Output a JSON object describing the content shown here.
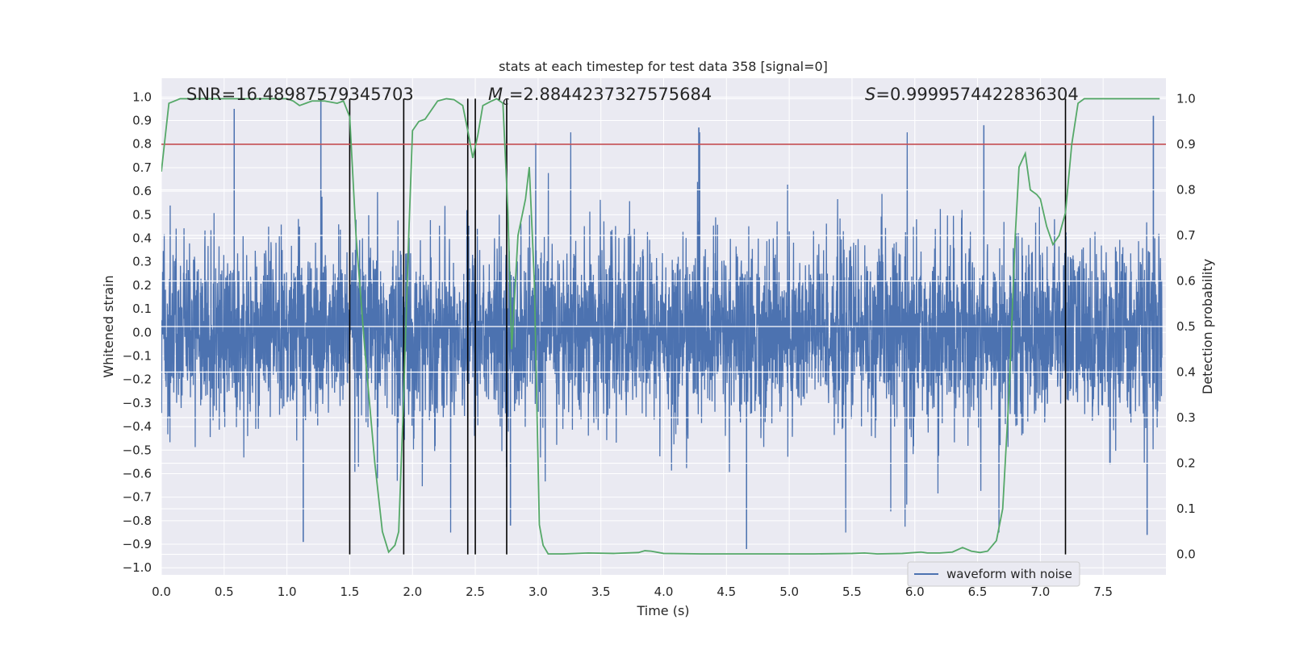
{
  "chart_data": {
    "type": "line",
    "title": "stats at each timestep for test data 358 [signal=0]",
    "xlabel": "Time (s)",
    "ylabel_left": "Whitened strain",
    "ylabel_right": "Detection probability",
    "xlim": [
      0.0,
      8.0
    ],
    "ylim_left": [
      -1.03,
      1.08
    ],
    "ylim_right": [
      -0.045,
      1.045
    ],
    "x_ticks": [
      0.0,
      0.5,
      1.0,
      1.5,
      2.0,
      2.5,
      3.0,
      3.5,
      4.0,
      4.5,
      5.0,
      5.5,
      6.0,
      6.5,
      7.0,
      7.5
    ],
    "x_tick_labels": [
      "0.0",
      "0.5",
      "1.0",
      "1.5",
      "2.0",
      "2.5",
      "3.0",
      "3.5",
      "4.0",
      "4.5",
      "5.0",
      "5.5",
      "6.0",
      "6.5",
      "7.0",
      "7.5"
    ],
    "y_left_ticks": [
      -1.0,
      -0.9,
      -0.8,
      -0.7,
      -0.6,
      -0.5,
      -0.4,
      -0.3,
      -0.2,
      -0.1,
      0.0,
      0.1,
      0.2,
      0.3,
      0.4,
      0.5,
      0.6,
      0.7,
      0.8,
      0.9,
      1.0
    ],
    "y_left_tick_labels": [
      "−1.0",
      "−0.9",
      "−0.8",
      "−0.7",
      "−0.6",
      "−0.5",
      "−0.4",
      "−0.3",
      "−0.2",
      "−0.1",
      "0.0",
      "0.1",
      "0.2",
      "0.3",
      "0.4",
      "0.5",
      "0.6",
      "0.7",
      "0.8",
      "0.9",
      "1.0"
    ],
    "y_right_ticks": [
      0.0,
      0.1,
      0.2,
      0.3,
      0.4,
      0.5,
      0.6,
      0.7,
      0.8,
      0.9,
      1.0
    ],
    "y_right_tick_labels": [
      "0.0",
      "0.1",
      "0.2",
      "0.3",
      "0.4",
      "0.5",
      "0.6",
      "0.7",
      "0.8",
      "0.9",
      "1.0"
    ],
    "annotations": {
      "snr": "SNR=16.48987579345703",
      "mc_symbol": "M",
      "mc_subscript": "c",
      "mc_value": "=2.8844237327575684",
      "s_symbol": "S",
      "s_value": "=0.9999574422836304"
    },
    "waveform_series": {
      "name": "waveform with noise",
      "color": "#4c72b0",
      "note": "dense noisy strain series; typical envelope ±0.55 with sparse spikes to ±0.95",
      "peak_spikes": [
        {
          "x": 0.58,
          "y": 0.95
        },
        {
          "x": 1.27,
          "y": 0.99
        },
        {
          "x": 1.13,
          "y": -0.89
        },
        {
          "x": 1.72,
          "y": -0.62
        },
        {
          "x": 2.78,
          "y": -0.82
        },
        {
          "x": 4.28,
          "y": 0.87
        },
        {
          "x": 4.66,
          "y": -0.92
        },
        {
          "x": 6.55,
          "y": 0.88
        },
        {
          "x": 7.9,
          "y": 0.92
        },
        {
          "x": 7.85,
          "y": -0.86
        }
      ]
    },
    "probability_series": {
      "name": "Detection probability",
      "color": "#55a868",
      "x": [
        0.0,
        0.06,
        0.15,
        0.3,
        0.5,
        0.7,
        0.9,
        1.0,
        1.05,
        1.1,
        1.2,
        1.3,
        1.4,
        1.45,
        1.5,
        1.55,
        1.62,
        1.7,
        1.76,
        1.81,
        1.86,
        1.89,
        1.93,
        1.97,
        2.0,
        2.05,
        2.1,
        2.2,
        2.27,
        2.33,
        2.4,
        2.44,
        2.48,
        2.52,
        2.56,
        2.63,
        2.67,
        2.72,
        2.76,
        2.79,
        2.84,
        2.9,
        2.93,
        2.97,
        3.01,
        3.04,
        3.08,
        3.2,
        3.4,
        3.6,
        3.8,
        3.85,
        3.9,
        4.0,
        4.3,
        4.7,
        5.0,
        5.2,
        5.5,
        5.6,
        5.7,
        5.9,
        6.05,
        6.1,
        6.2,
        6.3,
        6.38,
        6.45,
        6.52,
        6.58,
        6.65,
        6.7,
        6.75,
        6.8,
        6.83,
        6.88,
        6.92,
        6.97,
        7.0,
        7.05,
        7.1,
        7.15,
        7.2,
        7.25,
        7.3,
        7.35,
        7.4,
        7.5,
        7.7,
        7.95
      ],
      "y": [
        0.84,
        0.99,
        1.0,
        1.0,
        1.0,
        1.0,
        1.0,
        1.0,
        0.995,
        0.985,
        0.995,
        0.995,
        0.99,
        0.995,
        0.96,
        0.7,
        0.45,
        0.2,
        0.05,
        0.005,
        0.02,
        0.05,
        0.35,
        0.7,
        0.93,
        0.95,
        0.955,
        0.995,
        1.0,
        0.998,
        0.985,
        0.93,
        0.87,
        0.92,
        0.985,
        0.995,
        1.0,
        0.99,
        0.75,
        0.45,
        0.7,
        0.78,
        0.85,
        0.6,
        0.065,
        0.02,
        0.001,
        0.001,
        0.003,
        0.002,
        0.004,
        0.008,
        0.007,
        0.002,
        0.001,
        0.001,
        0.001,
        0.001,
        0.002,
        0.003,
        0.001,
        0.002,
        0.005,
        0.003,
        0.003,
        0.005,
        0.015,
        0.007,
        0.004,
        0.007,
        0.03,
        0.1,
        0.35,
        0.7,
        0.85,
        0.88,
        0.8,
        0.79,
        0.78,
        0.72,
        0.68,
        0.7,
        0.75,
        0.9,
        0.99,
        1.0,
        1.0,
        1.0,
        1.0,
        1.0
      ]
    },
    "threshold_line": {
      "y_right": 0.9,
      "color": "#c44e52"
    },
    "vertical_markers": [
      1.5,
      1.93,
      2.44,
      2.5,
      2.75,
      7.2
    ],
    "legend": {
      "label": "waveform with noise",
      "location": "lower-right"
    },
    "grid": true,
    "background_color": "#eaeaf2"
  }
}
